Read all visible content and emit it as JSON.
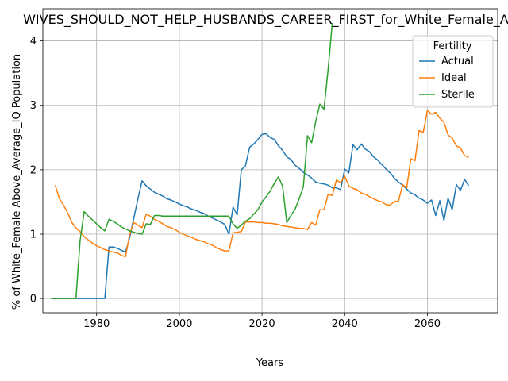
{
  "chart_data": {
    "type": "line",
    "title": "WIVES_SHOULD_NOT_HELP_HUSBANDS_CAREER_FIRST_for_White_Female_Ab",
    "xlabel": "Years",
    "ylabel": "% of White_Female Above_Average_IQ Population",
    "xlim": [
      1967,
      2077
    ],
    "ylim": [
      -0.22,
      4.5
    ],
    "x_ticks": [
      1980,
      2000,
      2020,
      2040,
      2060
    ],
    "y_ticks": [
      0,
      1,
      2,
      3,
      4
    ],
    "grid": true,
    "legend": {
      "title": "Fertility",
      "placement": "top-right"
    },
    "series": [
      {
        "name": "Actual",
        "color": "#1f77b4",
        "points": [
          [
            1969,
            0
          ],
          [
            1975,
            0
          ],
          [
            1980,
            0
          ],
          [
            1982,
            0
          ],
          [
            1983,
            0.8
          ],
          [
            1984,
            0.8
          ],
          [
            1985,
            0.78
          ],
          [
            1987,
            0.72
          ],
          [
            1988,
            0.95
          ],
          [
            1989,
            1.25
          ],
          [
            1990,
            1.55
          ],
          [
            1991,
            1.83
          ],
          [
            1992,
            1.75
          ],
          [
            1993,
            1.7
          ],
          [
            1994,
            1.65
          ],
          [
            1995,
            1.62
          ],
          [
            1996,
            1.59
          ],
          [
            1997,
            1.55
          ],
          [
            1998,
            1.53
          ],
          [
            1999,
            1.5
          ],
          [
            2000,
            1.47
          ],
          [
            2001,
            1.44
          ],
          [
            2002,
            1.42
          ],
          [
            2003,
            1.39
          ],
          [
            2004,
            1.37
          ],
          [
            2005,
            1.34
          ],
          [
            2006,
            1.32
          ],
          [
            2007,
            1.28
          ],
          [
            2008,
            1.25
          ],
          [
            2009,
            1.22
          ],
          [
            2010,
            1.19
          ],
          [
            2011,
            1.15
          ],
          [
            2012,
            1.0
          ],
          [
            2013,
            1.42
          ],
          [
            2014,
            1.3
          ],
          [
            2015,
            2.0
          ],
          [
            2016,
            2.06
          ],
          [
            2017,
            2.35
          ],
          [
            2018,
            2.4
          ],
          [
            2019,
            2.47
          ],
          [
            2020,
            2.55
          ],
          [
            2021,
            2.56
          ],
          [
            2022,
            2.5
          ],
          [
            2023,
            2.47
          ],
          [
            2024,
            2.37
          ],
          [
            2025,
            2.3
          ],
          [
            2026,
            2.2
          ],
          [
            2027,
            2.16
          ],
          [
            2028,
            2.07
          ],
          [
            2029,
            2.02
          ],
          [
            2030,
            1.96
          ],
          [
            2031,
            1.92
          ],
          [
            2032,
            1.87
          ],
          [
            2033,
            1.81
          ],
          [
            2034,
            1.79
          ],
          [
            2035,
            1.78
          ],
          [
            2036,
            1.76
          ],
          [
            2037,
            1.72
          ],
          [
            2038,
            1.72
          ],
          [
            2039,
            1.69
          ],
          [
            2040,
            2.01
          ],
          [
            2041,
            1.95
          ],
          [
            2042,
            2.39
          ],
          [
            2043,
            2.31
          ],
          [
            2044,
            2.4
          ],
          [
            2045,
            2.32
          ],
          [
            2046,
            2.28
          ],
          [
            2047,
            2.2
          ],
          [
            2048,
            2.15
          ],
          [
            2049,
            2.08
          ],
          [
            2050,
            2.01
          ],
          [
            2051,
            1.95
          ],
          [
            2052,
            1.87
          ],
          [
            2053,
            1.81
          ],
          [
            2054,
            1.76
          ],
          [
            2055,
            1.7
          ],
          [
            2056,
            1.64
          ],
          [
            2057,
            1.61
          ],
          [
            2058,
            1.56
          ],
          [
            2059,
            1.53
          ],
          [
            2060,
            1.48
          ],
          [
            2061,
            1.53
          ],
          [
            2062,
            1.29
          ],
          [
            2063,
            1.52
          ],
          [
            2064,
            1.21
          ],
          [
            2065,
            1.56
          ],
          [
            2066,
            1.38
          ],
          [
            2067,
            1.77
          ],
          [
            2068,
            1.68
          ],
          [
            2069,
            1.85
          ],
          [
            2070,
            1.75
          ]
        ]
      },
      {
        "name": "Ideal",
        "color": "#ff7f0e",
        "points": [
          [
            1970,
            1.76
          ],
          [
            1971,
            1.55
          ],
          [
            1972,
            1.45
          ],
          [
            1973,
            1.33
          ],
          [
            1974,
            1.18
          ],
          [
            1975,
            1.1
          ],
          [
            1976,
            1.04
          ],
          [
            1977,
            0.96
          ],
          [
            1978,
            0.91
          ],
          [
            1979,
            0.86
          ],
          [
            1980,
            0.82
          ],
          [
            1981,
            0.79
          ],
          [
            1982,
            0.76
          ],
          [
            1983,
            0.74
          ],
          [
            1984,
            0.72
          ],
          [
            1985,
            0.71
          ],
          [
            1986,
            0.67
          ],
          [
            1987,
            0.65
          ],
          [
            1988,
            1.0
          ],
          [
            1989,
            1.18
          ],
          [
            1990,
            1.14
          ],
          [
            1991,
            1.1
          ],
          [
            1992,
            1.31
          ],
          [
            1993,
            1.28
          ],
          [
            1994,
            1.23
          ],
          [
            1995,
            1.2
          ],
          [
            1996,
            1.16
          ],
          [
            1997,
            1.12
          ],
          [
            1998,
            1.1
          ],
          [
            1999,
            1.07
          ],
          [
            2000,
            1.03
          ],
          [
            2001,
            1.0
          ],
          [
            2002,
            0.97
          ],
          [
            2003,
            0.95
          ],
          [
            2004,
            0.92
          ],
          [
            2005,
            0.9
          ],
          [
            2006,
            0.88
          ],
          [
            2007,
            0.85
          ],
          [
            2008,
            0.83
          ],
          [
            2009,
            0.79
          ],
          [
            2010,
            0.76
          ],
          [
            2011,
            0.74
          ],
          [
            2012,
            0.74
          ],
          [
            2013,
            1.02
          ],
          [
            2014,
            1.03
          ],
          [
            2015,
            1.04
          ],
          [
            2016,
            1.19
          ],
          [
            2017,
            1.19
          ],
          [
            2018,
            1.19
          ],
          [
            2019,
            1.18
          ],
          [
            2020,
            1.18
          ],
          [
            2021,
            1.17
          ],
          [
            2022,
            1.17
          ],
          [
            2023,
            1.16
          ],
          [
            2024,
            1.15
          ],
          [
            2025,
            1.13
          ],
          [
            2026,
            1.12
          ],
          [
            2027,
            1.11
          ],
          [
            2028,
            1.1
          ],
          [
            2029,
            1.09
          ],
          [
            2030,
            1.09
          ],
          [
            2031,
            1.07
          ],
          [
            2032,
            1.18
          ],
          [
            2033,
            1.14
          ],
          [
            2034,
            1.38
          ],
          [
            2035,
            1.38
          ],
          [
            2036,
            1.62
          ],
          [
            2037,
            1.6
          ],
          [
            2038,
            1.84
          ],
          [
            2039,
            1.8
          ],
          [
            2040,
            1.9
          ],
          [
            2041,
            1.75
          ],
          [
            2042,
            1.71
          ],
          [
            2043,
            1.69
          ],
          [
            2044,
            1.64
          ],
          [
            2045,
            1.62
          ],
          [
            2046,
            1.58
          ],
          [
            2047,
            1.55
          ],
          [
            2048,
            1.52
          ],
          [
            2049,
            1.5
          ],
          [
            2050,
            1.46
          ],
          [
            2051,
            1.45
          ],
          [
            2052,
            1.51
          ],
          [
            2053,
            1.51
          ],
          [
            2054,
            1.77
          ],
          [
            2055,
            1.72
          ],
          [
            2056,
            2.17
          ],
          [
            2057,
            2.14
          ],
          [
            2058,
            2.61
          ],
          [
            2059,
            2.58
          ],
          [
            2060,
            2.92
          ],
          [
            2061,
            2.86
          ],
          [
            2062,
            2.89
          ],
          [
            2063,
            2.8
          ],
          [
            2064,
            2.74
          ],
          [
            2065,
            2.54
          ],
          [
            2066,
            2.49
          ],
          [
            2067,
            2.37
          ],
          [
            2068,
            2.34
          ],
          [
            2069,
            2.22
          ],
          [
            2070,
            2.19
          ]
        ]
      },
      {
        "name": "Sterile",
        "color": "#2ca02c",
        "points": [
          [
            1969,
            0
          ],
          [
            1975,
            0
          ],
          [
            1976,
            0.9
          ],
          [
            1977,
            1.35
          ],
          [
            1978,
            1.28
          ],
          [
            1979,
            1.22
          ],
          [
            1980,
            1.16
          ],
          [
            1981,
            1.1
          ],
          [
            1982,
            1.05
          ],
          [
            1983,
            1.23
          ],
          [
            1984,
            1.2
          ],
          [
            1985,
            1.16
          ],
          [
            1986,
            1.11
          ],
          [
            1987,
            1.08
          ],
          [
            1988,
            1.05
          ],
          [
            1989,
            1.03
          ],
          [
            1990,
            1.01
          ],
          [
            1991,
            1.0
          ],
          [
            1992,
            1.16
          ],
          [
            1993,
            1.15
          ],
          [
            1994,
            1.29
          ],
          [
            1995,
            1.29
          ],
          [
            1996,
            1.28
          ],
          [
            1997,
            1.28
          ],
          [
            1998,
            1.28
          ],
          [
            2000,
            1.28
          ],
          [
            2005,
            1.28
          ],
          [
            2010,
            1.28
          ],
          [
            2012,
            1.28
          ],
          [
            2013,
            1.16
          ],
          [
            2014,
            1.09
          ],
          [
            2015,
            1.14
          ],
          [
            2016,
            1.2
          ],
          [
            2017,
            1.24
          ],
          [
            2018,
            1.31
          ],
          [
            2019,
            1.38
          ],
          [
            2020,
            1.5
          ],
          [
            2021,
            1.58
          ],
          [
            2022,
            1.67
          ],
          [
            2023,
            1.79
          ],
          [
            2024,
            1.89
          ],
          [
            2025,
            1.74
          ],
          [
            2026,
            1.18
          ],
          [
            2027,
            1.29
          ],
          [
            2028,
            1.39
          ],
          [
            2029,
            1.55
          ],
          [
            2030,
            1.74
          ],
          [
            2031,
            2.53
          ],
          [
            2032,
            2.42
          ],
          [
            2033,
            2.75
          ],
          [
            2034,
            3.02
          ],
          [
            2035,
            2.94
          ],
          [
            2036,
            3.56
          ],
          [
            2037,
            4.28
          ]
        ]
      }
    ]
  }
}
